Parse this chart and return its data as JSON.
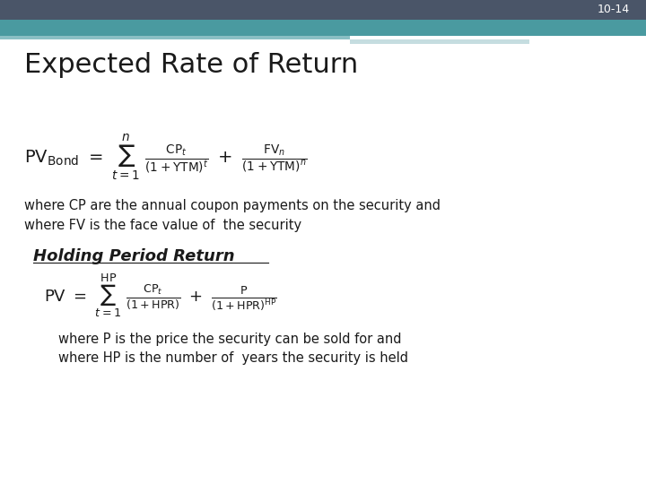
{
  "slide_number": "10-14",
  "title": "Expected Rate of Return",
  "subtitle": "Holding Period Return",
  "bg_color": "#ffffff",
  "header_bar_color": "#4a5568",
  "teal_bar_color": "#4a9aa0",
  "teal_bar2_color": "#8bbfc4",
  "teal_bar3_color": "#c5dde0",
  "title_color": "#1a1a1a",
  "text_color": "#1a1a1a",
  "header_font_size": 22,
  "subtitle_font_size": 13,
  "body_font_size": 10.5,
  "formula_font_size": 14,
  "slide_num_font_size": 9
}
